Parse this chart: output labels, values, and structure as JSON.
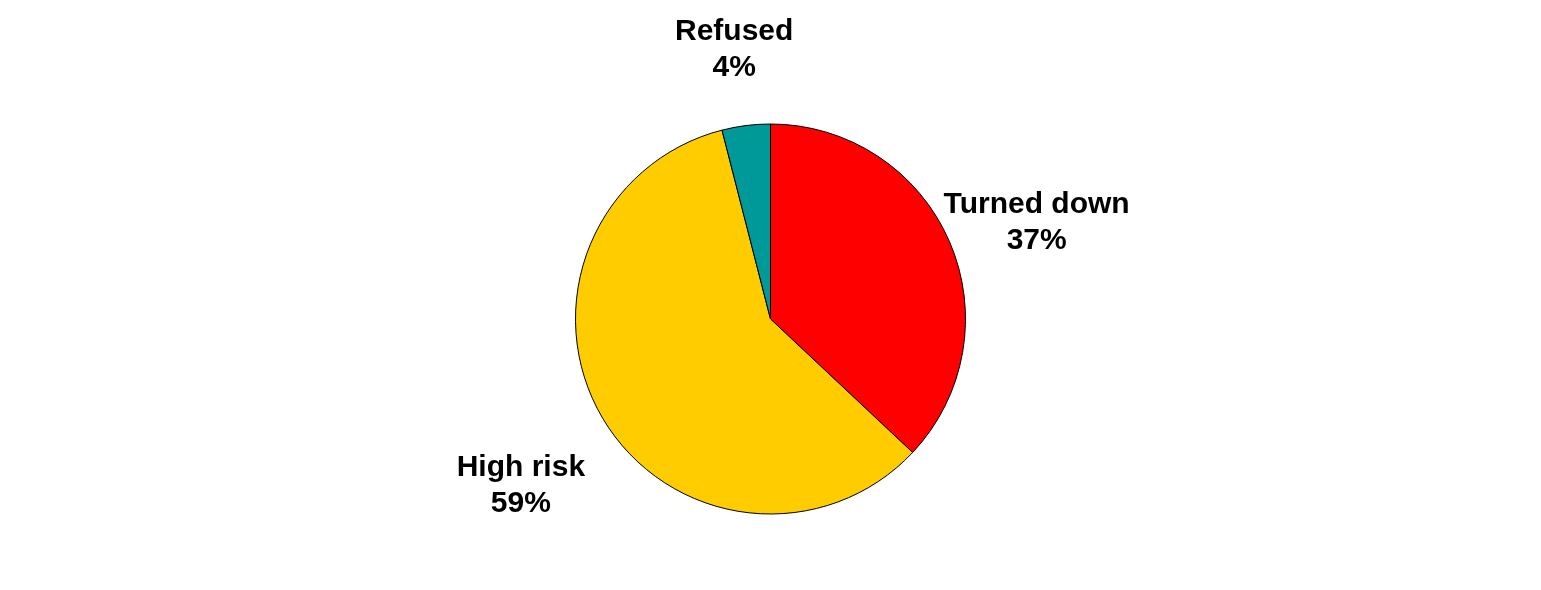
{
  "chart_data": {
    "type": "pie",
    "categories": [
      "Turned down",
      "High risk",
      "Refused"
    ],
    "values": [
      37,
      59,
      4
    ],
    "colors": [
      "#ff0000",
      "#ffcc00",
      "#009999"
    ],
    "value_labels": [
      "37%",
      "59%",
      "4%"
    ],
    "legend": false
  }
}
